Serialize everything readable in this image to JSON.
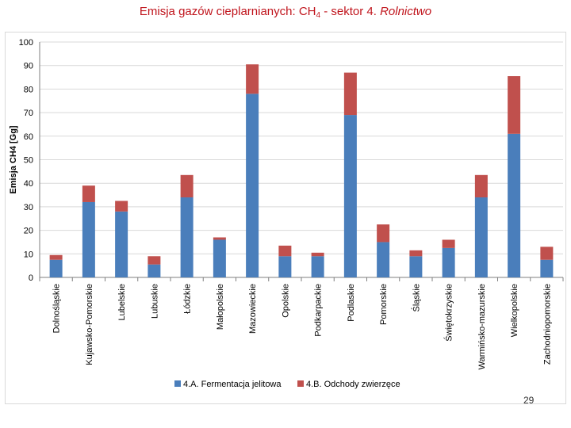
{
  "title": {
    "prefix": "Emisja gazów cieplarnianych: CH",
    "subscript": "4",
    "middle": " - sektor 4. ",
    "italic": "Rolnictwo"
  },
  "slide_number": "29",
  "colors": {
    "series1": "#4a7ebb",
    "series2": "#c0504d",
    "grid": "#d9d9d9",
    "title": "#c0141c"
  },
  "chart_data": {
    "type": "bar",
    "stacked": true,
    "ylabel": "Emisja CH4 [Gg]",
    "ylim": [
      0,
      100
    ],
    "yticks": [
      0,
      10,
      20,
      30,
      40,
      50,
      60,
      70,
      80,
      90,
      100
    ],
    "grid": true,
    "legend_position": "bottom",
    "categories": [
      "Dolnośląskie",
      "Kujawsko-Pomorskie",
      "Lubelskie",
      "Lubuskie",
      "Łódzkie",
      "Małopolskie",
      "Mazowieckie",
      "Opolskie",
      "Podkarpackie",
      "Podlaskie",
      "Pomorskie",
      "Śląskie",
      "Świętokrzyskie",
      "Warmińsko-mazurskie",
      "Wielkopolskie",
      "Zachodniopomorskie"
    ],
    "series": [
      {
        "name": "4.A. Fermentacja jelitowa",
        "color": "#4a7ebb",
        "values": [
          7.5,
          32,
          28,
          5.5,
          34,
          16,
          78,
          9,
          9,
          69,
          15,
          9,
          12.5,
          34,
          61,
          7.5
        ]
      },
      {
        "name": "4.B. Odchody zwierzęce",
        "color": "#c0504d",
        "values": [
          2,
          7,
          4.5,
          3.5,
          9.5,
          1,
          12.5,
          4.5,
          1.5,
          18,
          7.5,
          2.5,
          3.5,
          9.5,
          24.5,
          5.5
        ]
      }
    ]
  }
}
